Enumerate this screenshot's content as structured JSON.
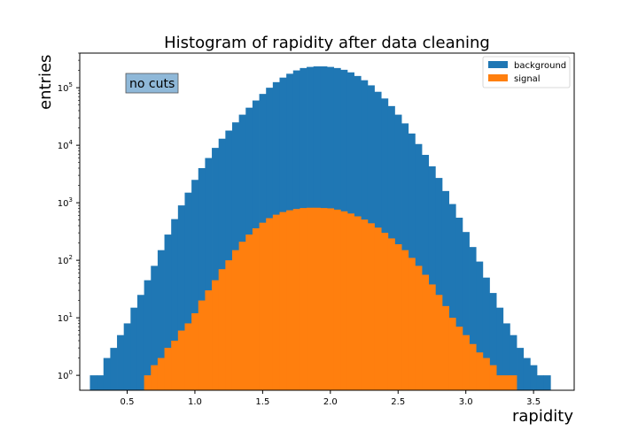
{
  "chart_data": {
    "type": "bar",
    "title": "Histogram of rapidity after data cleaning",
    "xlabel": "rapidity",
    "ylabel": "entries",
    "xlim": [
      0.15,
      3.8
    ],
    "ylim": [
      0.55,
      400000
    ],
    "yscale": "log",
    "grid": false,
    "legend_position": "top-right",
    "annotation": "no cuts",
    "colors": {
      "background": "#1f77b4",
      "signal": "#ff7f0e",
      "annotation_box": "#8fb8d8"
    },
    "xticks": [
      0.5,
      1.0,
      1.5,
      2.0,
      2.5,
      3.0,
      3.5
    ],
    "xtick_labels": [
      "0.5",
      "1.0",
      "1.5",
      "2.0",
      "2.5",
      "3.0",
      "3.5"
    ],
    "yticks": [
      1,
      10,
      100,
      1000,
      10000,
      100000
    ],
    "ytick_labels": [
      {
        "base": "10",
        "exp": "0"
      },
      {
        "base": "10",
        "exp": "1"
      },
      {
        "base": "10",
        "exp": "2"
      },
      {
        "base": "10",
        "exp": "3"
      },
      {
        "base": "10",
        "exp": "4"
      },
      {
        "base": "10",
        "exp": "5"
      }
    ],
    "series": [
      {
        "name": "background",
        "color": "#1f77b4",
        "x": [
          0.25,
          0.3,
          0.35,
          0.4,
          0.45,
          0.5,
          0.55,
          0.6,
          0.65,
          0.7,
          0.75,
          0.8,
          0.85,
          0.9,
          0.95,
          1.0,
          1.05,
          1.1,
          1.15,
          1.2,
          1.25,
          1.3,
          1.35,
          1.4,
          1.45,
          1.5,
          1.55,
          1.6,
          1.65,
          1.7,
          1.75,
          1.8,
          1.85,
          1.9,
          1.95,
          2.0,
          2.05,
          2.1,
          2.15,
          2.2,
          2.25,
          2.3,
          2.35,
          2.4,
          2.45,
          2.5,
          2.55,
          2.6,
          2.65,
          2.7,
          2.75,
          2.8,
          2.85,
          2.9,
          2.95,
          3.0,
          3.05,
          3.1,
          3.15,
          3.2,
          3.25,
          3.3,
          3.35,
          3.4,
          3.45,
          3.5,
          3.55,
          3.6
        ],
        "values": [
          1,
          1,
          2,
          3,
          5,
          8,
          15,
          25,
          45,
          80,
          150,
          280,
          520,
          900,
          1500,
          2500,
          4000,
          6000,
          9000,
          13000,
          18000,
          25000,
          34000,
          45000,
          60000,
          78000,
          100000,
          125000,
          150000,
          175000,
          200000,
          220000,
          230000,
          235000,
          235000,
          230000,
          220000,
          205000,
          185000,
          160000,
          135000,
          110000,
          85000,
          65000,
          48000,
          34000,
          24000,
          16000,
          10500,
          6800,
          4300,
          2700,
          1600,
          950,
          550,
          310,
          170,
          95,
          50,
          27,
          15,
          8,
          5,
          3,
          2,
          1.5,
          1,
          1
        ]
      },
      {
        "name": "signal",
        "color": "#ff7f0e",
        "x": [
          0.65,
          0.7,
          0.75,
          0.8,
          0.85,
          0.9,
          0.95,
          1.0,
          1.05,
          1.1,
          1.15,
          1.2,
          1.25,
          1.3,
          1.35,
          1.4,
          1.45,
          1.5,
          1.55,
          1.6,
          1.65,
          1.7,
          1.75,
          1.8,
          1.85,
          1.9,
          1.95,
          2.0,
          2.05,
          2.1,
          2.15,
          2.2,
          2.25,
          2.3,
          2.35,
          2.4,
          2.45,
          2.5,
          2.55,
          2.6,
          2.65,
          2.7,
          2.75,
          2.8,
          2.85,
          2.9,
          2.95,
          3.0,
          3.05,
          3.1,
          3.15,
          3.2,
          3.25,
          3.3,
          3.35
        ],
        "values": [
          1,
          1.5,
          2,
          3,
          4,
          6,
          8,
          12,
          20,
          30,
          45,
          70,
          100,
          150,
          210,
          280,
          360,
          450,
          540,
          620,
          690,
          740,
          780,
          810,
          820,
          820,
          810,
          800,
          760,
          710,
          650,
          580,
          510,
          440,
          370,
          300,
          240,
          190,
          150,
          110,
          80,
          56,
          38,
          25,
          16,
          10,
          7,
          5,
          3.5,
          2.5,
          2,
          1.5,
          1,
          1,
          1
        ]
      }
    ]
  }
}
